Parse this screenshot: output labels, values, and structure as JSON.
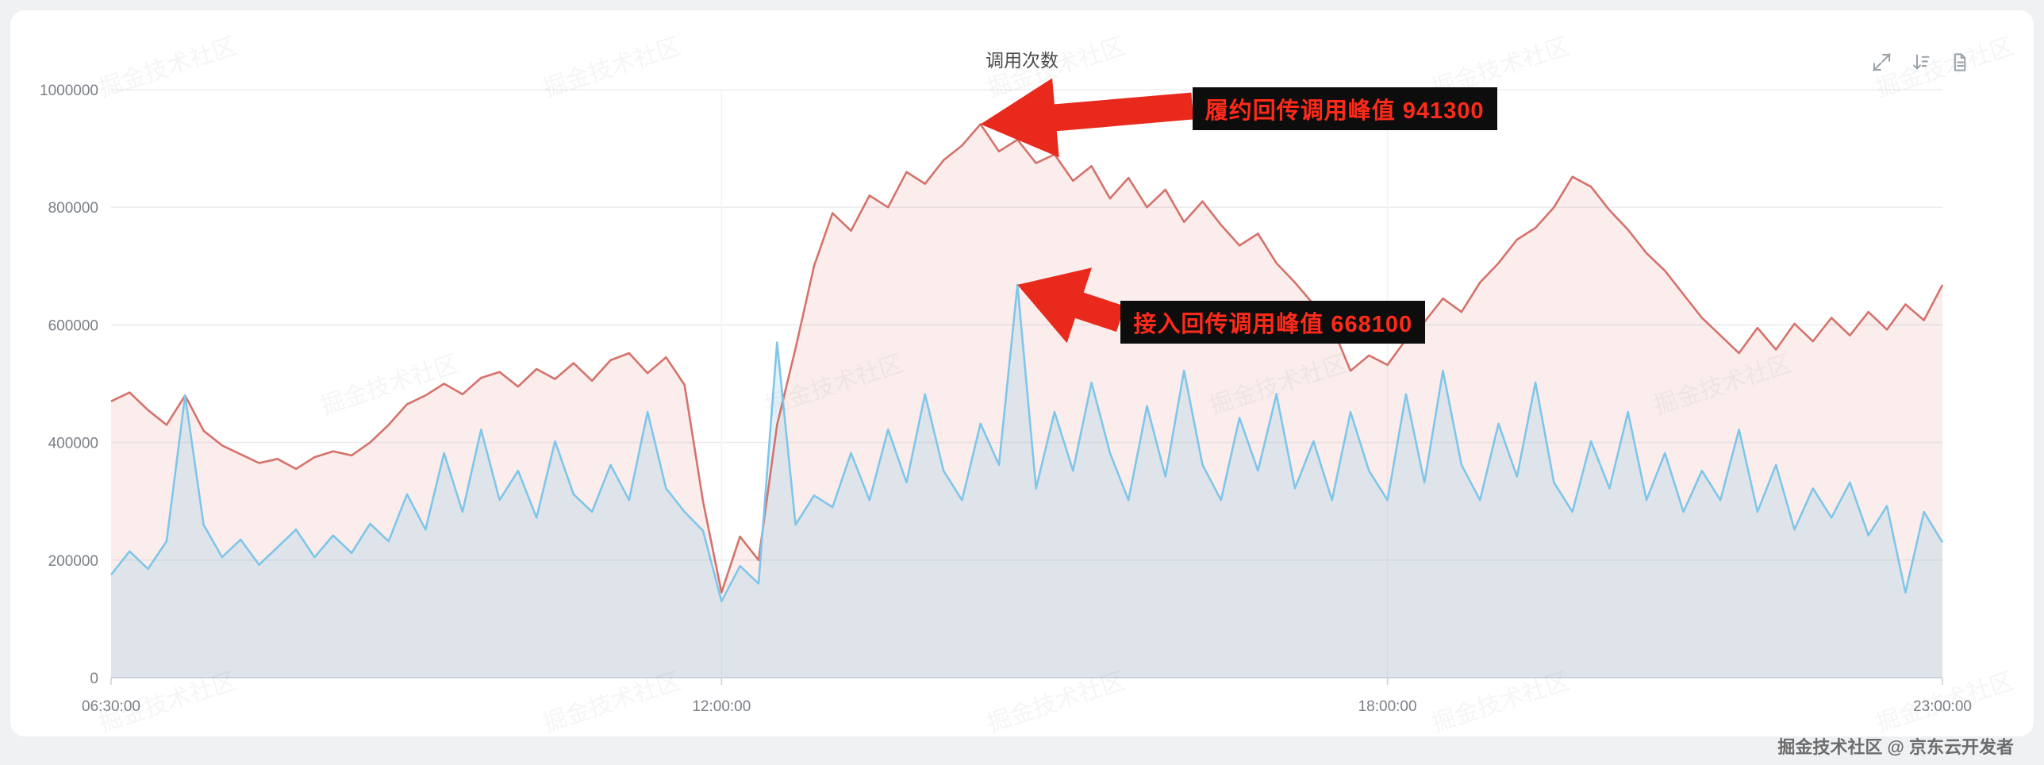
{
  "page": {
    "bottom_watermark": "掘金技术社区 @ 京东云开发者",
    "tile_watermark": "掘金技术社区"
  },
  "toolbar": {
    "icons": [
      "fullscreen",
      "sort",
      "document"
    ]
  },
  "chart_data": {
    "type": "line",
    "title": "调用次数",
    "xlabel": "",
    "ylabel": "",
    "grid": true,
    "legend_position": "none",
    "x_start": "06:30:00",
    "x_end": "23:00:00",
    "step_minutes": 10,
    "x_ticks": [
      "06:30:00",
      "12:00:00",
      "18:00:00",
      "23:00:00"
    ],
    "y_ticks": [
      0,
      200000,
      400000,
      600000,
      800000,
      1000000
    ],
    "ylim": [
      0,
      1000000
    ],
    "series": [
      {
        "name": "履约回传调用",
        "color": "#d5726b",
        "fill": "rgba(213,114,107,0.13)",
        "peak": 941300,
        "values": [
          470000,
          485000,
          455000,
          430000,
          480000,
          420000,
          395000,
          380000,
          365000,
          372000,
          355000,
          375000,
          385000,
          378000,
          400000,
          430000,
          465000,
          480000,
          500000,
          482000,
          510000,
          520000,
          495000,
          525000,
          508000,
          535000,
          505000,
          540000,
          552000,
          518000,
          545000,
          498000,
          300000,
          145000,
          240000,
          200000,
          430000,
          560000,
          700000,
          790000,
          760000,
          820000,
          800000,
          860000,
          840000,
          880000,
          905000,
          941300,
          895000,
          915000,
          875000,
          890000,
          845000,
          870000,
          815000,
          850000,
          800000,
          830000,
          775000,
          810000,
          770000,
          735000,
          755000,
          705000,
          672000,
          635000,
          598000,
          522000,
          548000,
          532000,
          575000,
          605000,
          645000,
          622000,
          672000,
          705000,
          745000,
          765000,
          800000,
          852000,
          835000,
          795000,
          762000,
          722000,
          692000,
          652000,
          612000,
          582000,
          552000,
          595000,
          558000,
          602000,
          572000,
          612000,
          582000,
          622000,
          592000,
          635000,
          608000,
          668000
        ]
      },
      {
        "name": "接入回传调用",
        "color": "#7fc6ea",
        "fill": "rgba(127,198,234,0.22)",
        "peak": 668100,
        "values": [
          175000,
          215000,
          185000,
          232000,
          480000,
          260000,
          205000,
          235000,
          192000,
          222000,
          252000,
          205000,
          242000,
          212000,
          262000,
          232000,
          312000,
          252000,
          382000,
          282000,
          422000,
          302000,
          352000,
          272000,
          402000,
          312000,
          282000,
          362000,
          302000,
          452000,
          322000,
          282000,
          250000,
          130000,
          190000,
          160000,
          570000,
          260000,
          310000,
          290000,
          382000,
          302000,
          422000,
          332000,
          482000,
          352000,
          302000,
          432000,
          362000,
          668100,
          322000,
          452000,
          352000,
          502000,
          382000,
          302000,
          462000,
          342000,
          522000,
          362000,
          302000,
          442000,
          352000,
          482000,
          322000,
          402000,
          302000,
          452000,
          352000,
          302000,
          482000,
          332000,
          522000,
          362000,
          302000,
          432000,
          342000,
          502000,
          332000,
          282000,
          402000,
          322000,
          452000,
          302000,
          382000,
          282000,
          352000,
          302000,
          422000,
          282000,
          362000,
          252000,
          322000,
          272000,
          332000,
          242000,
          292000,
          145000,
          282000,
          230000
        ]
      }
    ],
    "annotations": [
      {
        "text": "履约回传调用峰值 941300",
        "time": "14:20:00",
        "value": 941300,
        "box_dx": 267,
        "box_dy": -46
      },
      {
        "text": "接入回传调用峰值 668100",
        "time": "14:40:00",
        "value": 668100,
        "box_dx": 130,
        "box_dy": 20
      }
    ]
  }
}
